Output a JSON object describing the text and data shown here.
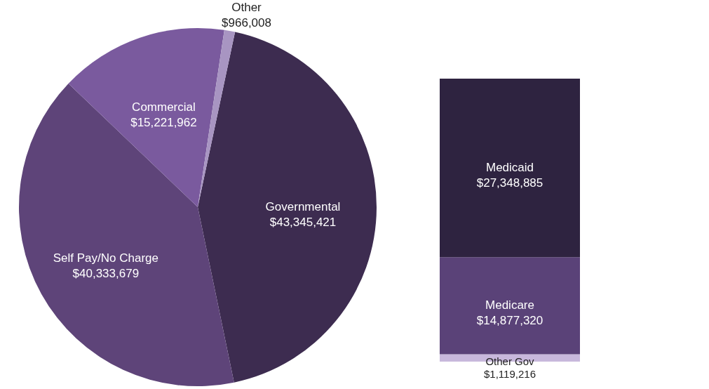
{
  "chart_data": [
    {
      "type": "pie",
      "categories": [
        "Governmental",
        "Self Pay/No Charge",
        "Commercial",
        "Other"
      ],
      "values": [
        43345421,
        40333679,
        15221962,
        966008
      ],
      "colors": [
        "#3d2c50",
        "#5e4479",
        "#7a5a9e",
        "#a895c2"
      ],
      "value_labels": [
        "$43,345,421",
        "$40,333,679",
        "$15,221,962",
        "$966,008"
      ]
    },
    {
      "type": "bar",
      "stacked": true,
      "categories": [
        null
      ],
      "series": [
        {
          "name": "Other Gov",
          "color": "#c8b8dc",
          "values": [
            1119216
          ],
          "value_labels": [
            "$1,119,216"
          ]
        },
        {
          "name": "Medicare",
          "color": "#5a4278",
          "values": [
            14877320
          ],
          "value_labels": [
            "$14,877,320"
          ]
        },
        {
          "name": "Medicaid",
          "color": "#2e2340",
          "values": [
            27348885
          ],
          "value_labels": [
            "$27,348,885"
          ]
        }
      ]
    }
  ]
}
